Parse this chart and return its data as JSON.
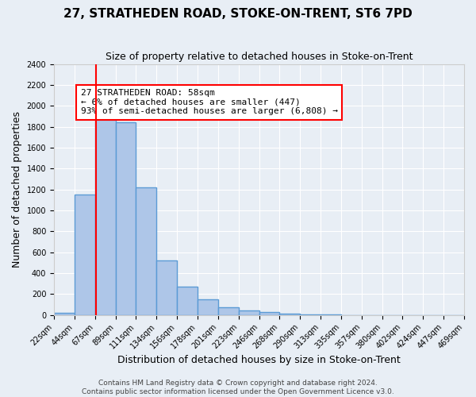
{
  "title": "27, STRATHEDEN ROAD, STOKE-ON-TRENT, ST6 7PD",
  "subtitle": "Size of property relative to detached houses in Stoke-on-Trent",
  "xlabel": "Distribution of detached houses by size in Stoke-on-Trent",
  "ylabel": "Number of detached properties",
  "bar_labels": [
    "22sqm",
    "44sqm",
    "67sqm",
    "89sqm",
    "111sqm",
    "134sqm",
    "156sqm",
    "178sqm",
    "201sqm",
    "223sqm",
    "246sqm",
    "268sqm",
    "290sqm",
    "313sqm",
    "335sqm",
    "357sqm",
    "380sqm",
    "402sqm",
    "424sqm",
    "447sqm",
    "469sqm"
  ],
  "bar_values": [
    25,
    1155,
    1950,
    1840,
    1220,
    520,
    270,
    150,
    75,
    45,
    30,
    10,
    5,
    3,
    2,
    1,
    1,
    1,
    1,
    0
  ],
  "bar_color": "#aec6e8",
  "bar_edge_color": "#5b9bd5",
  "bar_edge_width": 1.0,
  "vline_x": 67,
  "vline_color": "red",
  "annotation_title": "27 STRATHEDEN ROAD: 58sqm",
  "annotation_line1": "← 6% of detached houses are smaller (447)",
  "annotation_line2": "93% of semi-detached houses are larger (6,808) →",
  "annotation_box_color": "white",
  "annotation_box_edge_color": "red",
  "ylim": [
    0,
    2400
  ],
  "xlim_start": 22,
  "bin_width": 22,
  "num_bins": 20,
  "footer1": "Contains HM Land Registry data © Crown copyright and database right 2024.",
  "footer2": "Contains public sector information licensed under the Open Government Licence v3.0.",
  "background_color": "#e8eef5",
  "plot_background_color": "#e8eef5",
  "grid_color": "white",
  "title_fontsize": 11,
  "subtitle_fontsize": 9,
  "axis_label_fontsize": 9,
  "tick_fontsize": 7,
  "annotation_fontsize": 8,
  "footer_fontsize": 6.5
}
